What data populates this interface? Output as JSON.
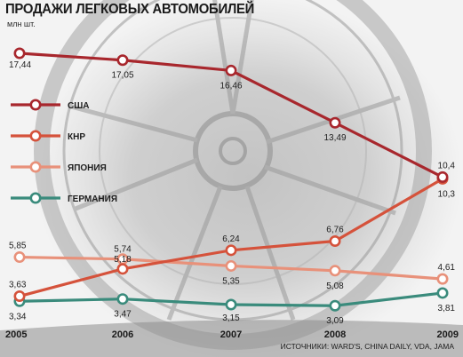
{
  "title": "ПРОДАЖИ ЛЕГКОВЫХ АВТОМОБИЛЕЙ",
  "unit": "млн шт.",
  "source": "ИСТОЧНИКИ: WARD'S, CHINA DAILY, VDA, JAMA",
  "colors": {
    "usa": "#a8272d",
    "china": "#d5523b",
    "japan": "#e8917a",
    "germany": "#3a8b7c"
  },
  "chart_data": {
    "type": "line",
    "title": "ПРОДАЖИ ЛЕГКОВЫХ АВТОМОБИЛЕЙ",
    "ylabel": "млн шт.",
    "xlabel": "",
    "x": [
      "2005",
      "2006",
      "2007",
      "2008",
      "2009"
    ],
    "ylim": [
      3,
      18
    ],
    "grid": false,
    "legend": "left",
    "series": [
      {
        "key": "usa",
        "name": "США",
        "color": "#a8272d",
        "values": [
          17.44,
          17.05,
          16.46,
          13.49,
          10.4
        ],
        "labels": [
          "17,44",
          "17,05",
          "16,46",
          "13,49",
          "10,4"
        ]
      },
      {
        "key": "china",
        "name": "КНР",
        "color": "#d5523b",
        "values": [
          3.63,
          5.18,
          6.24,
          6.76,
          10.3
        ],
        "labels": [
          "3,63",
          "5,18",
          "6,24",
          "6,76",
          "10,3"
        ]
      },
      {
        "key": "japan",
        "name": "ЯПОНИЯ",
        "color": "#e8917a",
        "values": [
          5.85,
          5.74,
          5.35,
          5.08,
          4.61
        ],
        "labels": [
          "5,85",
          "5,74",
          "5,35",
          "5,08",
          "4,61"
        ]
      },
      {
        "key": "germany",
        "name": "ГЕРМАНИЯ",
        "color": "#3a8b7c",
        "values": [
          3.34,
          3.47,
          3.15,
          3.09,
          3.81
        ],
        "labels": [
          "3,34",
          "3,47",
          "3,15",
          "3,09",
          "3,81"
        ]
      }
    ]
  }
}
